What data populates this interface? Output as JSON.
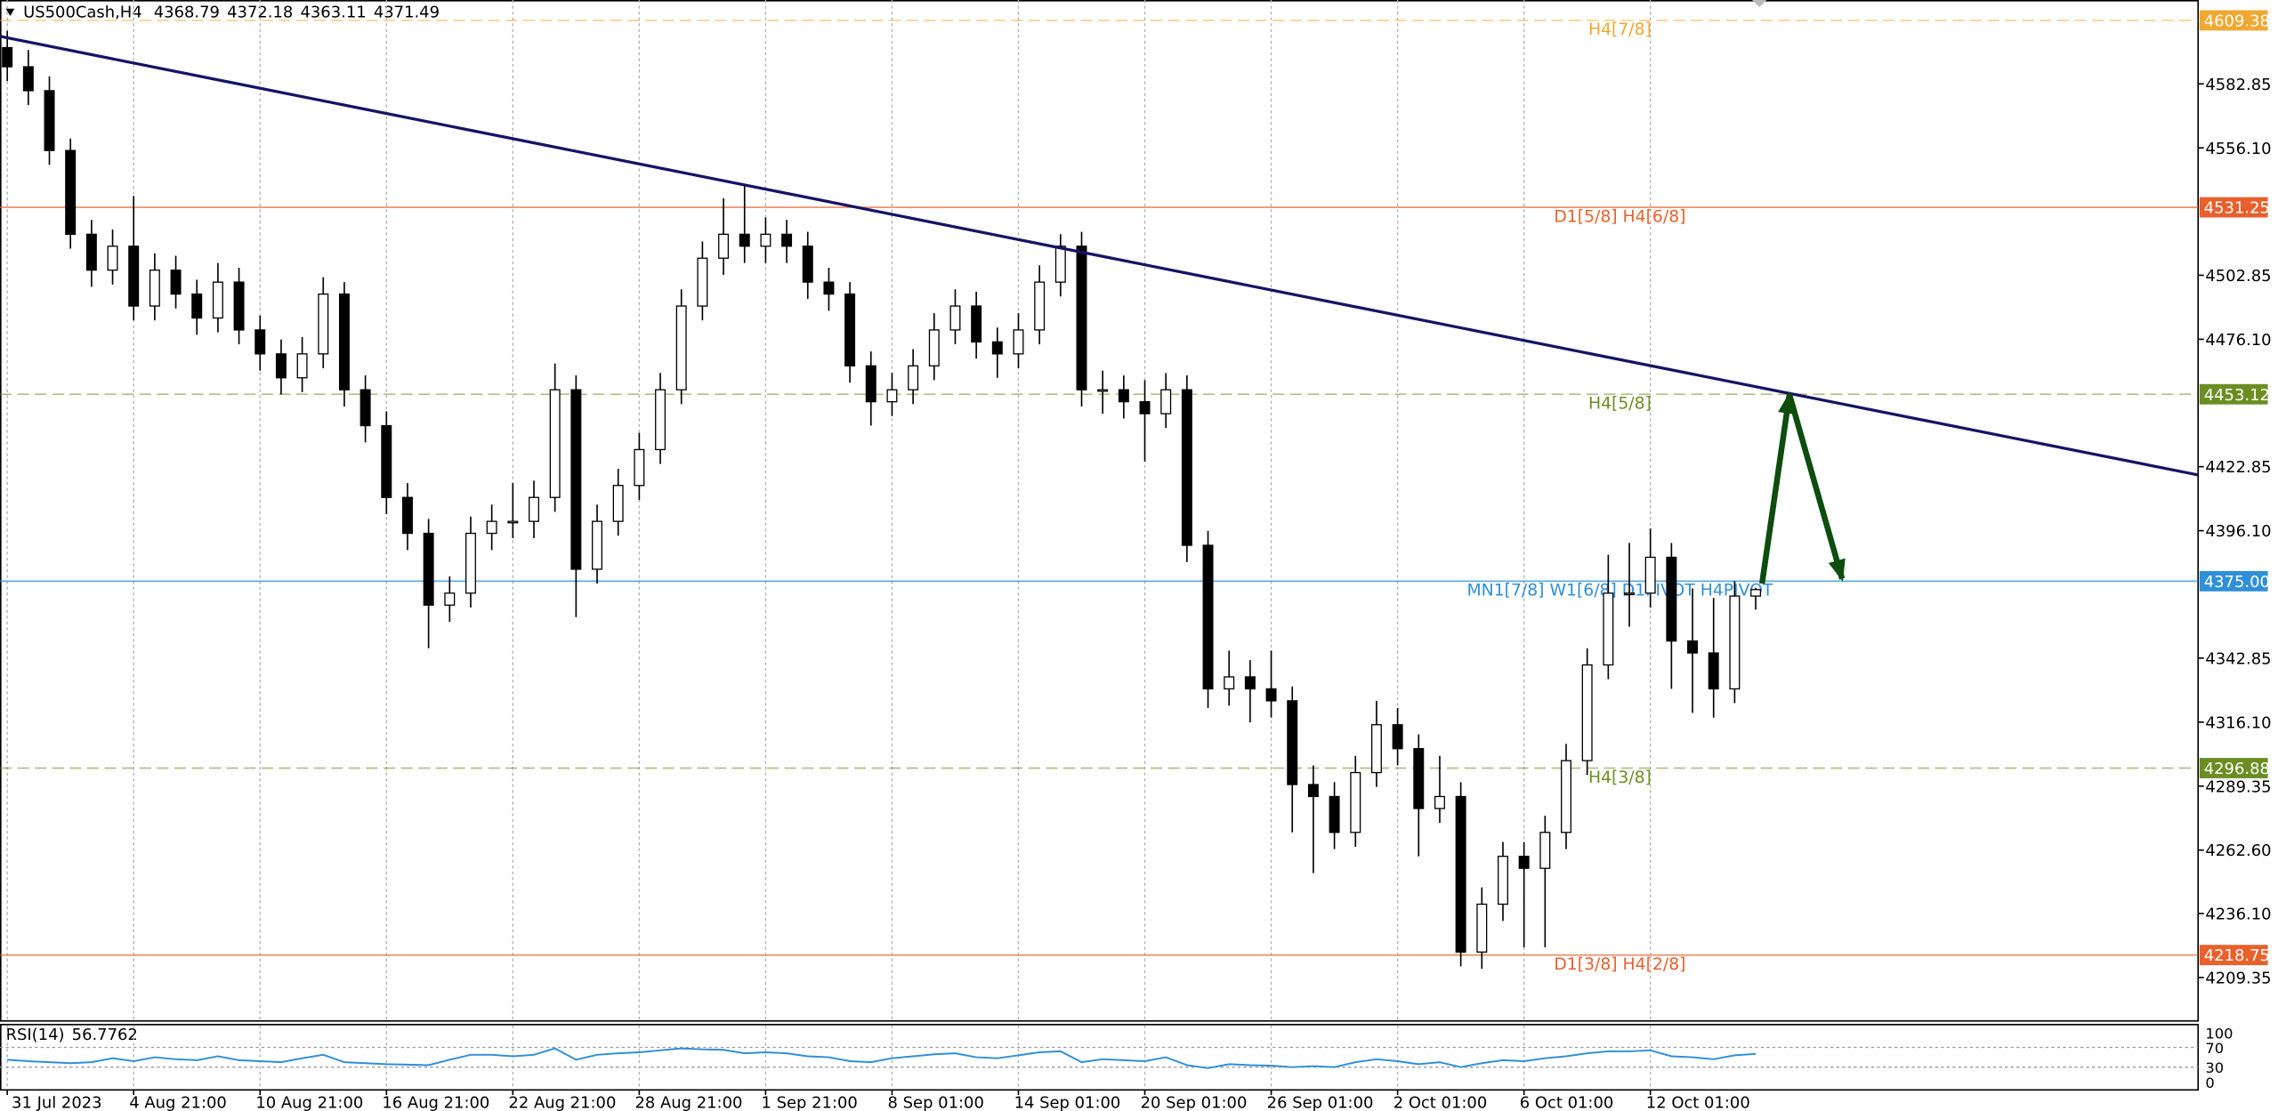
{
  "chart_data": {
    "type": "candlestick",
    "symbol": "US500Cash,H4",
    "xlim": [
      -0.345,
      104
    ],
    "ylim": [
      4191.2,
      4617.9
    ],
    "grid": true,
    "up_color": "#ffffff",
    "down_color": "#000000",
    "xticks": [
      {
        "value": 0,
        "label": "31 Jul 2023"
      },
      {
        "value": 6,
        "label": "4 Aug 21:00"
      },
      {
        "value": 12,
        "label": "10 Aug 21:00"
      },
      {
        "value": 18,
        "label": "16 Aug 21:00"
      },
      {
        "value": 24,
        "label": "22 Aug 21:00"
      },
      {
        "value": 30,
        "label": "28 Aug 21:00"
      },
      {
        "value": 36,
        "label": "1 Sep 21:00"
      },
      {
        "value": 42,
        "label": "8 Sep 01:00"
      },
      {
        "value": 48,
        "label": "14 Sep 01:00"
      },
      {
        "value": 54,
        "label": "20 Sep 01:00"
      },
      {
        "value": 60,
        "label": "26 Sep 01:00"
      },
      {
        "value": 66,
        "label": "2 Oct 01:00"
      },
      {
        "value": 72,
        "label": "6 Oct 01:00"
      },
      {
        "value": 78,
        "label": "12 Oct 01:00"
      }
    ],
    "yticks": [
      4582.85,
      {
        "value": 4556.1,
        "label": "4556.10"
      },
      4502.85,
      {
        "value": 4476.1,
        "label": "4476.10"
      },
      4422.85,
      {
        "value": 4396.1,
        "label": "4396.10"
      },
      4342.85,
      {
        "value": 4316.1,
        "label": "4316.10"
      },
      4289.35,
      {
        "value": 4262.6,
        "label": "4262.60"
      },
      {
        "value": 4236.1,
        "label": "4236.10"
      },
      4209.35
    ],
    "ohlc": [
      [
        4598,
        4605,
        4584,
        4590
      ],
      [
        4590,
        4597,
        4574,
        4580
      ],
      [
        4580,
        4586,
        4549,
        4555
      ],
      [
        4555,
        4560,
        4514,
        4520
      ],
      [
        4520,
        4526,
        4498,
        4505
      ],
      [
        4505,
        4522,
        4499,
        4515
      ],
      [
        4515,
        4536,
        4484,
        4490
      ],
      [
        4490,
        4512,
        4484,
        4505
      ],
      [
        4505,
        4511,
        4489,
        4495
      ],
      [
        4495,
        4501,
        4478,
        4485
      ],
      [
        4485,
        4508,
        4479,
        4500
      ],
      [
        4500,
        4506,
        4474,
        4480
      ],
      [
        4480,
        4486,
        4463,
        4470
      ],
      [
        4470,
        4476,
        4453,
        4460
      ],
      [
        4460,
        4477,
        4454,
        4470
      ],
      [
        4470,
        4502,
        4464,
        4495
      ],
      [
        4495,
        4500,
        4448,
        4455
      ],
      [
        4455,
        4461,
        4433,
        4440
      ],
      [
        4440,
        4446,
        4403,
        4410
      ],
      [
        4410,
        4416,
        4388,
        4395
      ],
      [
        4395,
        4401,
        4347,
        4365
      ],
      [
        4365,
        4377,
        4358,
        4370
      ],
      [
        4370,
        4402,
        4364,
        4395
      ],
      [
        4395,
        4407,
        4388,
        4400
      ],
      [
        4400,
        4416,
        4393,
        4400
      ],
      [
        4400,
        4417,
        4393,
        4410
      ],
      [
        4410,
        4466,
        4404,
        4455
      ],
      [
        4455,
        4461,
        4360,
        4380
      ],
      [
        4380,
        4407,
        4374,
        4400
      ],
      [
        4400,
        4422,
        4394,
        4415
      ],
      [
        4415,
        4437,
        4409,
        4430
      ],
      [
        4430,
        4462,
        4424,
        4455
      ],
      [
        4455,
        4497,
        4449,
        4490
      ],
      [
        4490,
        4517,
        4484,
        4510
      ],
      [
        4510,
        4535,
        4503,
        4520
      ],
      [
        4520,
        4540,
        4508,
        4515
      ],
      [
        4515,
        4527,
        4508,
        4520
      ],
      [
        4520,
        4526,
        4508,
        4515
      ],
      [
        4515,
        4521,
        4493,
        4500
      ],
      [
        4500,
        4506,
        4488,
        4495
      ],
      [
        4495,
        4500,
        4458,
        4465
      ],
      [
        4465,
        4471,
        4440,
        4450
      ],
      [
        4450,
        4462,
        4444,
        4455
      ],
      [
        4455,
        4472,
        4449,
        4465
      ],
      [
        4465,
        4487,
        4459,
        4480
      ],
      [
        4480,
        4497,
        4474,
        4490
      ],
      [
        4490,
        4496,
        4468,
        4475
      ],
      [
        4475,
        4481,
        4460,
        4470
      ],
      [
        4470,
        4487,
        4464,
        4480
      ],
      [
        4480,
        4507,
        4474,
        4500
      ],
      [
        4500,
        4520,
        4494,
        4515
      ],
      [
        4515,
        4521,
        4448,
        4455
      ],
      [
        4455,
        4463,
        4445,
        4455
      ],
      [
        4455,
        4461,
        4443,
        4450
      ],
      [
        4450,
        4459,
        4425,
        4445
      ],
      [
        4445,
        4462,
        4439,
        4455
      ],
      [
        4455,
        4461,
        4383,
        4390
      ],
      [
        4390,
        4396,
        4322,
        4330
      ],
      [
        4330,
        4346,
        4323,
        4335
      ],
      [
        4335,
        4342,
        4316,
        4330
      ],
      [
        4330,
        4346,
        4318,
        4325
      ],
      [
        4325,
        4331,
        4270,
        4290
      ],
      [
        4290,
        4298,
        4253,
        4285
      ],
      [
        4285,
        4291,
        4263,
        4270
      ],
      [
        4270,
        4302,
        4264,
        4295
      ],
      [
        4295,
        4325,
        4289,
        4315
      ],
      [
        4315,
        4322,
        4298,
        4305
      ],
      [
        4305,
        4311,
        4260,
        4280
      ],
      [
        4280,
        4302,
        4274,
        4285
      ],
      [
        4285,
        4291,
        4214,
        4220
      ],
      [
        4220,
        4247,
        4213,
        4240
      ],
      [
        4240,
        4266,
        4233,
        4260
      ],
      [
        4260,
        4266,
        4222,
        4255
      ],
      [
        4255,
        4277,
        4222,
        4270
      ],
      [
        4270,
        4307,
        4263,
        4300
      ],
      [
        4300,
        4347,
        4294,
        4340
      ],
      [
        4340,
        4386,
        4334,
        4370
      ],
      [
        4370,
        4391,
        4356,
        4370
      ],
      [
        4370,
        4397,
        4364,
        4385
      ],
      [
        4385,
        4391,
        4330,
        4350
      ],
      [
        4350,
        4372,
        4320,
        4345
      ],
      [
        4345,
        4368,
        4318,
        4330
      ],
      [
        4330,
        4375,
        4324,
        4368.79
      ],
      [
        4368.79,
        4372.18,
        4363.11,
        4371.49
      ]
    ],
    "levels": [
      {
        "price": 4609.38,
        "text": "H4[7/8]",
        "color": "#f0a830",
        "dashed": true
      },
      {
        "price": 4531.25,
        "text": "D1[5/8] H4[6/8]",
        "color": "#e8602c",
        "dashed": false
      },
      {
        "price": 4453.12,
        "text": "H4[5/8]",
        "color": "#6b8e23",
        "dashed": true
      },
      {
        "price": {
          "value": 4375,
          "label": "4375.00"
        },
        "text": "MN1[7/8] W1[6/8] D1PIVOT H4PIVOT",
        "color": "#2f8fd8",
        "dashed": false
      },
      {
        "price": 4296.88,
        "text": "H4[3/8]",
        "color": "#6b8e23",
        "dashed": true
      },
      {
        "price": 4218.75,
        "text": "D1[3/8] H4[2/8]",
        "color": "#e8602c",
        "dashed": false
      }
    ],
    "trendline": {
      "x": [
        -0.345,
        104
      ],
      "y": [
        4602.7,
        4419.4
      ],
      "color": "#141466"
    },
    "arrow": {
      "x": [
        83.3,
        84.6,
        87.1
      ],
      "y": [
        4374,
        4453,
        4376
      ],
      "color": "#0d4d0d"
    },
    "rsi": {
      "name": "RSI(14)",
      "color": "#2f8fd8",
      "ylim": [
        0,
        100
      ],
      "yticks": [
        100,
        70,
        30,
        0
      ],
      "values": [
        45,
        42,
        40,
        38,
        40,
        48,
        42,
        50,
        46,
        44,
        52,
        44,
        42,
        40,
        48,
        55,
        40,
        38,
        36,
        35,
        34,
        45,
        55,
        55,
        52,
        55,
        68,
        45,
        55,
        58,
        60,
        64,
        68,
        66,
        65,
        58,
        60,
        58,
        52,
        50,
        42,
        40,
        48,
        52,
        56,
        58,
        50,
        48,
        54,
        60,
        62,
        40,
        46,
        44,
        42,
        50,
        34,
        28,
        36,
        34,
        33,
        30,
        32,
        30,
        40,
        46,
        42,
        36,
        40,
        30,
        38,
        44,
        42,
        48,
        52,
        58,
        62,
        62,
        64,
        52,
        50,
        46,
        54,
        56.7762
      ]
    }
  }
}
